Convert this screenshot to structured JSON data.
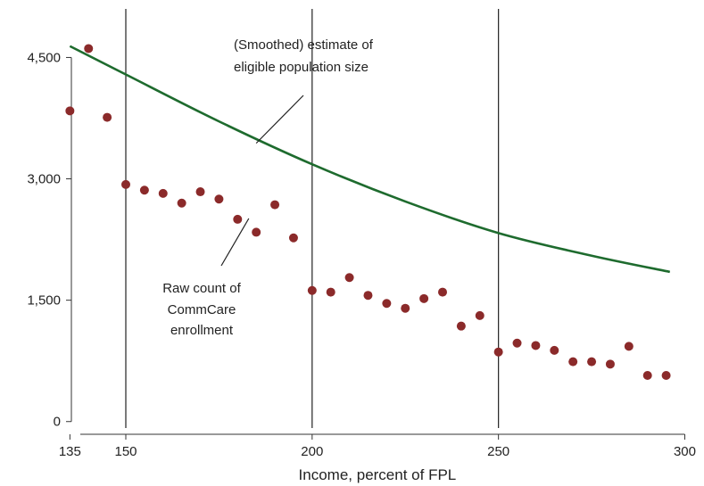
{
  "chart_data": {
    "type": "scatter",
    "title": "",
    "xlabel": "Income, percent of FPL",
    "ylabel": "",
    "xlim": [
      133,
      303
    ],
    "ylim": [
      -80,
      5100
    ],
    "x_ticks": [
      {
        "value": 135,
        "label": "135"
      },
      {
        "value": 150,
        "label": "150"
      },
      {
        "value": 200,
        "label": "200"
      },
      {
        "value": 250,
        "label": "250"
      },
      {
        "value": 300,
        "label": "300"
      }
    ],
    "y_ticks": [
      {
        "value": 0,
        "label": "0"
      },
      {
        "value": 1500,
        "label": "1,500"
      },
      {
        "value": 3000,
        "label": "3,000"
      },
      {
        "value": 4500,
        "label": "4,500"
      }
    ],
    "vertical_lines": [
      150,
      200,
      250
    ],
    "grid": false,
    "legend": "none",
    "colors": {
      "points": "#8B2A2A",
      "line": "#1E6B2E",
      "axis": "#333333",
      "vline": "#222222"
    },
    "series": [
      {
        "kind": "scatter",
        "x": [
          135,
          140,
          145,
          150,
          155,
          160,
          165,
          170,
          175,
          180,
          185,
          190,
          195,
          200,
          205,
          210,
          215,
          220,
          225,
          230,
          235,
          240,
          245,
          250,
          255,
          260,
          265,
          270,
          275,
          280,
          285,
          290,
          295
        ],
        "values": [
          3840,
          4610,
          3760,
          2930,
          2860,
          2820,
          2700,
          2840,
          2750,
          2500,
          2340,
          2680,
          2270,
          1620,
          1600,
          1780,
          1560,
          1460,
          1400,
          1520,
          1600,
          1180,
          1310,
          860,
          970,
          940,
          880,
          740,
          740,
          710,
          930,
          570,
          570
        ]
      },
      {
        "kind": "line",
        "x": [
          135,
          150,
          175,
          200,
          225,
          250,
          275,
          296
        ],
        "values": [
          4640,
          4290,
          3710,
          3180,
          2720,
          2330,
          2050,
          1850
        ]
      }
    ],
    "annotations": [
      {
        "lines": [
          "(Smoothed) estimate of",
          "eligible population size"
        ],
        "pointer_x": 185,
        "pointer_y": 3440
      },
      {
        "lines": [
          "Raw count of",
          "CommCare",
          "enrollment"
        ],
        "pointer_x": 183,
        "pointer_y": 2510
      }
    ]
  }
}
